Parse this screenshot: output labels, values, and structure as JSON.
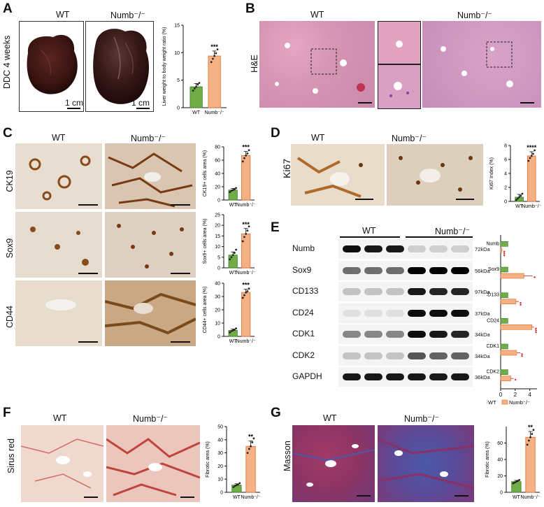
{
  "panels": {
    "A": {
      "letter": "A",
      "wt_label": "WT",
      "numb_label": "Numb⁻/⁻",
      "row_label": "DDC 4 weeks",
      "scale_text": "1 cm",
      "chart_index": 0
    },
    "B": {
      "letter": "B",
      "wt_label": "WT",
      "numb_label": "Numb⁻/⁻",
      "row_label": "H&E"
    },
    "C": {
      "letter": "C",
      "wt_label": "WT",
      "numb_label": "Numb⁻/⁻",
      "rows": [
        "CK19",
        "Sox9",
        "CD44"
      ]
    },
    "D": {
      "letter": "D",
      "wt_label": "WT",
      "numb_label": "Numb⁻/⁻",
      "row_label": "Ki67"
    },
    "E": {
      "letter": "E",
      "wt_label": "WT",
      "numb_label": "Numb⁻/⁻",
      "blots": [
        {
          "name": "Numb",
          "kda": "72kDa"
        },
        {
          "name": "Sox9",
          "kda": "56kDa"
        },
        {
          "name": "CD133",
          "kda": "97kDa"
        },
        {
          "name": "CD24",
          "kda": "37kDa"
        },
        {
          "name": "CDK1",
          "kda": "34kDa"
        },
        {
          "name": "CDK2",
          "kda": "34kDa"
        },
        {
          "name": "GAPDH",
          "kda": "36kDa"
        }
      ]
    },
    "F": {
      "letter": "F",
      "wt_label": "WT",
      "numb_label": "Numb⁻/⁻",
      "row_label": "Sirus red"
    },
    "G": {
      "letter": "G",
      "wt_label": "WT",
      "numb_label": "Numb⁻/⁻",
      "row_label": "Masson"
    }
  },
  "colors": {
    "wt_bar": "#70ad47",
    "numb_bar": "#f4b183",
    "numb_edge": "#e46c2a",
    "sig": "#c00000"
  },
  "chart_data": [
    {
      "type": "bar",
      "panel": "A",
      "categories": [
        "WT",
        "Numb⁻/⁻"
      ],
      "values": [
        3.8,
        9.4
      ],
      "errors": [
        0.6,
        0.9
      ],
      "ylabel": "Liver weight to body weight ratio (%)",
      "ylim": [
        0,
        15
      ],
      "yticks": [
        0,
        5,
        10,
        15
      ],
      "significance": "***",
      "points": [
        [
          3.1,
          3.5,
          3.8,
          4.2,
          4.5
        ],
        [
          8.3,
          8.9,
          9.4,
          9.9,
          10.6
        ]
      ]
    },
    {
      "type": "bar",
      "panel": "C1",
      "categories": [
        "WT",
        "Numb⁻/⁻"
      ],
      "values": [
        15,
        67
      ],
      "errors": [
        2.5,
        6
      ],
      "ylabel": "CK19+ cells area (%)",
      "ylim": [
        0,
        80
      ],
      "yticks": [
        0,
        20,
        40,
        60,
        80
      ],
      "significance": "***",
      "points": [
        [
          12,
          14,
          15,
          16,
          18
        ],
        [
          58,
          63,
          67,
          70,
          75
        ]
      ]
    },
    {
      "type": "bar",
      "panel": "C2",
      "categories": [
        "WT",
        "Numb⁻/⁻"
      ],
      "values": [
        6,
        16
      ],
      "errors": [
        1.5,
        2.5
      ],
      "ylabel": "Sox9+ cells area (%)",
      "ylim": [
        0,
        25
      ],
      "yticks": [
        0,
        5,
        10,
        15,
        20,
        25
      ],
      "significance": "***",
      "points": [
        [
          4,
          5,
          6,
          7,
          8.5
        ],
        [
          12.5,
          14.5,
          16,
          17.5,
          19.5
        ]
      ]
    },
    {
      "type": "bar",
      "panel": "C3",
      "categories": [
        "WT",
        "Numb⁻/⁻"
      ],
      "values": [
        4.5,
        33
      ],
      "errors": [
        1,
        2.5
      ],
      "ylabel": "CD44+ cells area (%)",
      "ylim": [
        0,
        40
      ],
      "yticks": [
        0,
        10,
        20,
        30,
        40
      ],
      "significance": "***",
      "points": [
        [
          3,
          4,
          4.5,
          5,
          6
        ],
        [
          29,
          31,
          33,
          34,
          36
        ]
      ]
    },
    {
      "type": "bar",
      "panel": "D",
      "categories": [
        "WT",
        "Numb⁻/⁻"
      ],
      "values": [
        0.6,
        6.5
      ],
      "errors": [
        0.4,
        0.6
      ],
      "ylabel": "Ki67 Index (%)",
      "ylim": [
        0,
        8
      ],
      "yticks": [
        0,
        2,
        4,
        6,
        8
      ],
      "significance": "****",
      "points": [
        [
          0.2,
          0.4,
          0.6,
          0.8,
          1.1
        ],
        [
          5.8,
          6.2,
          6.5,
          6.8,
          7.3
        ]
      ]
    },
    {
      "type": "hbar",
      "panel": "E",
      "categories": [
        "Numb",
        "Sox9",
        "CD133",
        "CD24",
        "CDK1",
        "CDK2"
      ],
      "series": [
        {
          "name": "WT",
          "values": [
            1,
            1,
            1,
            1,
            1,
            1
          ]
        },
        {
          "name": "Numb⁻/⁻",
          "values": [
            0.15,
            3.2,
            2.1,
            4.3,
            2.2,
            1.4
          ]
        }
      ],
      "errors": [
        0.1,
        1.2,
        0.4,
        0.3,
        0.5,
        0.4
      ],
      "significance": [
        "***",
        "*",
        "**",
        "***",
        "**",
        "*"
      ],
      "xlim": [
        0,
        5
      ],
      "xticks": [
        0,
        2,
        4
      ]
    },
    {
      "type": "bar",
      "panel": "F",
      "categories": [
        "WT",
        "Numb⁻/⁻"
      ],
      "values": [
        5.5,
        35
      ],
      "errors": [
        1,
        4
      ],
      "ylabel": "Fibrotic area (%)",
      "ylim": [
        0,
        50
      ],
      "yticks": [
        0,
        10,
        20,
        30,
        40,
        50
      ],
      "significance": "**",
      "points": [
        [
          4,
          5,
          5.5,
          6,
          7
        ],
        [
          30,
          33,
          35,
          38,
          41
        ]
      ]
    },
    {
      "type": "bar",
      "panel": "G",
      "categories": [
        "WT",
        "Numb⁻/⁻"
      ],
      "values": [
        13,
        67
      ],
      "errors": [
        1.5,
        7
      ],
      "ylabel": "Fibrotic area (%)",
      "ylim": [
        0,
        80
      ],
      "yticks": [
        0,
        20,
        40,
        60
      ],
      "significance": "**",
      "points": [
        [
          11,
          12,
          13,
          14,
          15
        ],
        [
          58,
          63,
          67,
          71,
          76
        ]
      ]
    }
  ]
}
